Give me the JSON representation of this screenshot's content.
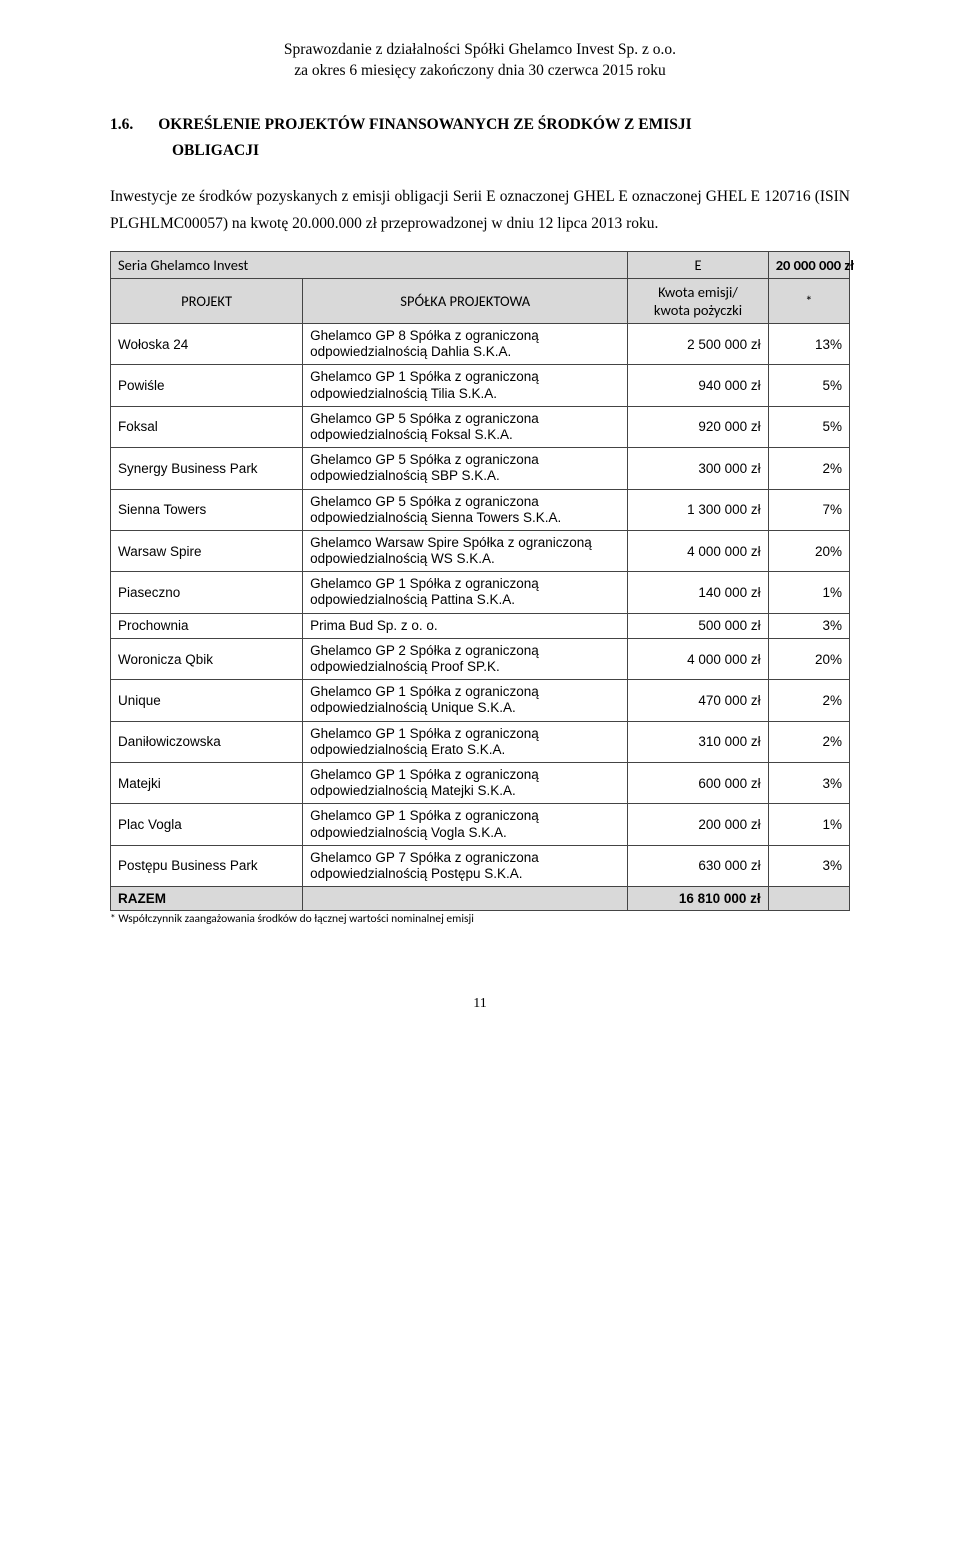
{
  "header": {
    "line1": "Sprawozdanie z działalności Spółki Ghelamco Invest Sp. z o.o.",
    "line2": "za okres 6 miesięcy zakończony dnia 30 czerwca 2015 roku"
  },
  "section": {
    "number": "1.6.",
    "title_line1": "OKREŚLENIE PROJEKTÓW FINANSOWANYCH ZE ŚRODKÓW Z EMISJI",
    "title_line2": "OBLIGACJI"
  },
  "intro": "Inwestycje ze środków pozyskanych z emisji obligacji Serii E oznaczonej GHEL E oznaczonej GHEL E 120716 (ISIN PLGHLMC00057) na kwotę 20.000.000 zł przeprowadzonej w dniu 12 lipca 2013 roku.",
  "series": {
    "label": "Seria Ghelamco Invest",
    "code": "E",
    "amount": "20 000 000 zł"
  },
  "headers": {
    "projekt": "PROJEKT",
    "company": "SPÓŁKA PROJEKTOWA",
    "amount_line1": "Kwota emisji/",
    "amount_line2": "kwota pożyczki",
    "pct": "*"
  },
  "rows": [
    {
      "project": "Wołoska 24",
      "company": "Ghelamco GP 8 Spółka z ograniczoną odpowiedzialnością Dahlia S.K.A.",
      "amount": "2 500 000 zł",
      "pct": "13%"
    },
    {
      "project": "Powiśle",
      "company": "Ghelamco GP 1 Spółka z ograniczoną odpowiedzialnością Tilia S.K.A.",
      "amount": "940 000 zł",
      "pct": "5%"
    },
    {
      "project": "Foksal",
      "company": "Ghelamco GP 5 Spółka z ograniczona odpowiedzialnością Foksal S.K.A.",
      "amount": "920 000 zł",
      "pct": "5%"
    },
    {
      "project": "Synergy Business Park",
      "company": "Ghelamco GP 5 Spółka z ograniczona odpowiedzialnością SBP S.K.A.",
      "amount": "300 000 zł",
      "pct": "2%"
    },
    {
      "project": "Sienna Towers",
      "company": "Ghelamco GP 5 Spółka z ograniczona odpowiedzialnością Sienna Towers S.K.A.",
      "amount": "1 300 000 zł",
      "pct": "7%"
    },
    {
      "project": "Warsaw Spire",
      "company": "Ghelamco Warsaw Spire Spółka z ograniczoną odpowiedzialnością WS S.K.A.",
      "amount": "4 000 000 zł",
      "pct": "20%"
    },
    {
      "project": "Piaseczno",
      "company": "Ghelamco GP 1 Spółka z ograniczoną odpowiedzialnością Pattina S.K.A.",
      "amount": "140 000 zł",
      "pct": "1%"
    },
    {
      "project": "Prochownia",
      "company": "Prima Bud Sp. z o. o.",
      "amount": "500 000 zł",
      "pct": "3%"
    },
    {
      "project": "Woronicza Qbik",
      "company": "Ghelamco GP 2 Spółka z ograniczoną odpowiedzialnością Proof SP.K.",
      "amount": "4 000 000 zł",
      "pct": "20%"
    },
    {
      "project": "Unique",
      "company": "Ghelamco GP 1 Spółka z ograniczoną odpowiedzialnością Unique S.K.A.",
      "amount": "470 000 zł",
      "pct": "2%"
    },
    {
      "project": "Daniłowiczowska",
      "company": "Ghelamco GP 1 Spółka z ograniczoną odpowiedzialnością Erato S.K.A.",
      "amount": "310 000 zł",
      "pct": "2%"
    },
    {
      "project": "Matejki",
      "company": "Ghelamco GP 1 Spółka z ograniczoną odpowiedzialnością Matejki S.K.A.",
      "amount": "600 000 zł",
      "pct": "3%"
    },
    {
      "project": "Plac Vogla",
      "company": "Ghelamco GP 1 Spółka z ograniczoną odpowiedzialnością Vogla S.K.A.",
      "amount": "200 000 zł",
      "pct": "1%"
    },
    {
      "project": "Postępu Business Park",
      "company": "Ghelamco GP 7 Spółka z ograniczona odpowiedzialnością Postępu S.K.A.",
      "amount": "630 000 zł",
      "pct": "3%"
    }
  ],
  "total": {
    "label": "RAZEM",
    "amount": "16 810 000 zł"
  },
  "footnote": "* Współczynnik zaangażowania środków do łącznej wartości nominalnej emisji",
  "page_number": "11"
}
